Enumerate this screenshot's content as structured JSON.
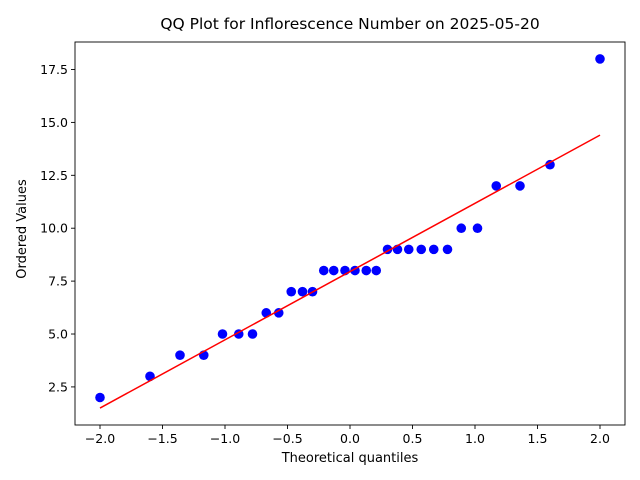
{
  "chart_data": {
    "type": "scatter",
    "title": "QQ Plot for Inflorescence Number on 2025-05-20",
    "xlabel": "Theoretical quantiles",
    "ylabel": "Ordered Values",
    "xlim": [
      -2.2,
      2.2
    ],
    "ylim": [
      0.7,
      18.8
    ],
    "xticks": [
      -2.0,
      -1.5,
      -1.0,
      -0.5,
      0.0,
      0.5,
      1.0,
      1.5,
      2.0
    ],
    "xtick_labels": [
      "−2.0",
      "−1.5",
      "−1.0",
      "−0.5",
      "0.0",
      "0.5",
      "1.0",
      "1.5",
      "2.0"
    ],
    "yticks": [
      2.5,
      5.0,
      7.5,
      10.0,
      12.5,
      15.0,
      17.5
    ],
    "ytick_labels": [
      "2.5",
      "5.0",
      "7.5",
      "10.0",
      "12.5",
      "15.0",
      "17.5"
    ],
    "grid": false,
    "series": [
      {
        "kind": "points",
        "color": "#0000ff",
        "x": [
          -2.0,
          -1.6,
          -1.36,
          -1.17,
          -1.02,
          -0.89,
          -0.78,
          -0.67,
          -0.57,
          -0.47,
          -0.38,
          -0.3,
          -0.21,
          -0.13,
          -0.04,
          0.04,
          0.13,
          0.21,
          0.3,
          0.38,
          0.47,
          0.57,
          0.67,
          0.78,
          0.89,
          1.02,
          1.17,
          1.36,
          1.6,
          2.0
        ],
        "y": [
          2,
          3,
          4,
          4,
          5,
          5,
          5,
          6,
          6,
          7,
          7,
          7,
          8,
          8,
          8,
          8,
          8,
          8,
          9,
          9,
          9,
          9,
          9,
          9,
          10,
          10,
          12,
          12,
          13,
          18
        ]
      },
      {
        "kind": "fit-line",
        "color": "#ff0000",
        "x": [
          -2.0,
          2.0
        ],
        "y": [
          1.5,
          14.4
        ]
      }
    ]
  }
}
